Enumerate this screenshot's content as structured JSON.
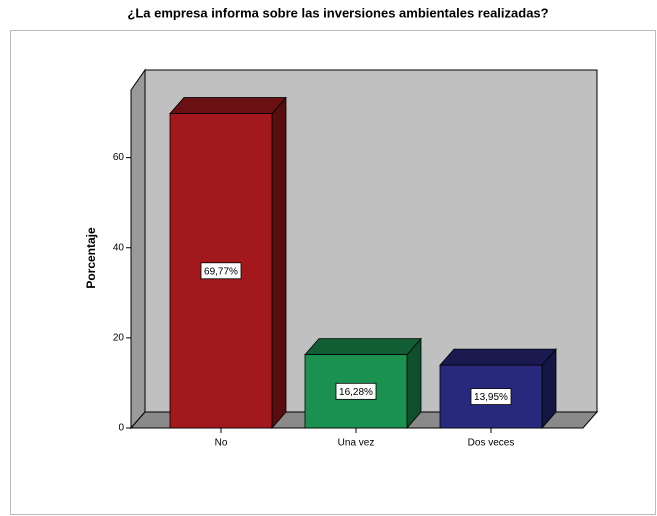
{
  "chart_data": {
    "type": "bar3d",
    "title": "¿La empresa informa sobre las inversiones ambientales realizadas?",
    "y_label": "Porcentaje",
    "categories": [
      "No",
      "Una vez",
      "Dos veces"
    ],
    "values": [
      69.77,
      16.28,
      13.95
    ],
    "value_labels": [
      "69,77%",
      "16,28%",
      "13,95%"
    ],
    "colors": [
      "#a3181c",
      "#1b9150",
      "#28287c"
    ],
    "ylim": [
      0,
      75
    ],
    "yticks": [
      0,
      20,
      40,
      60
    ]
  }
}
